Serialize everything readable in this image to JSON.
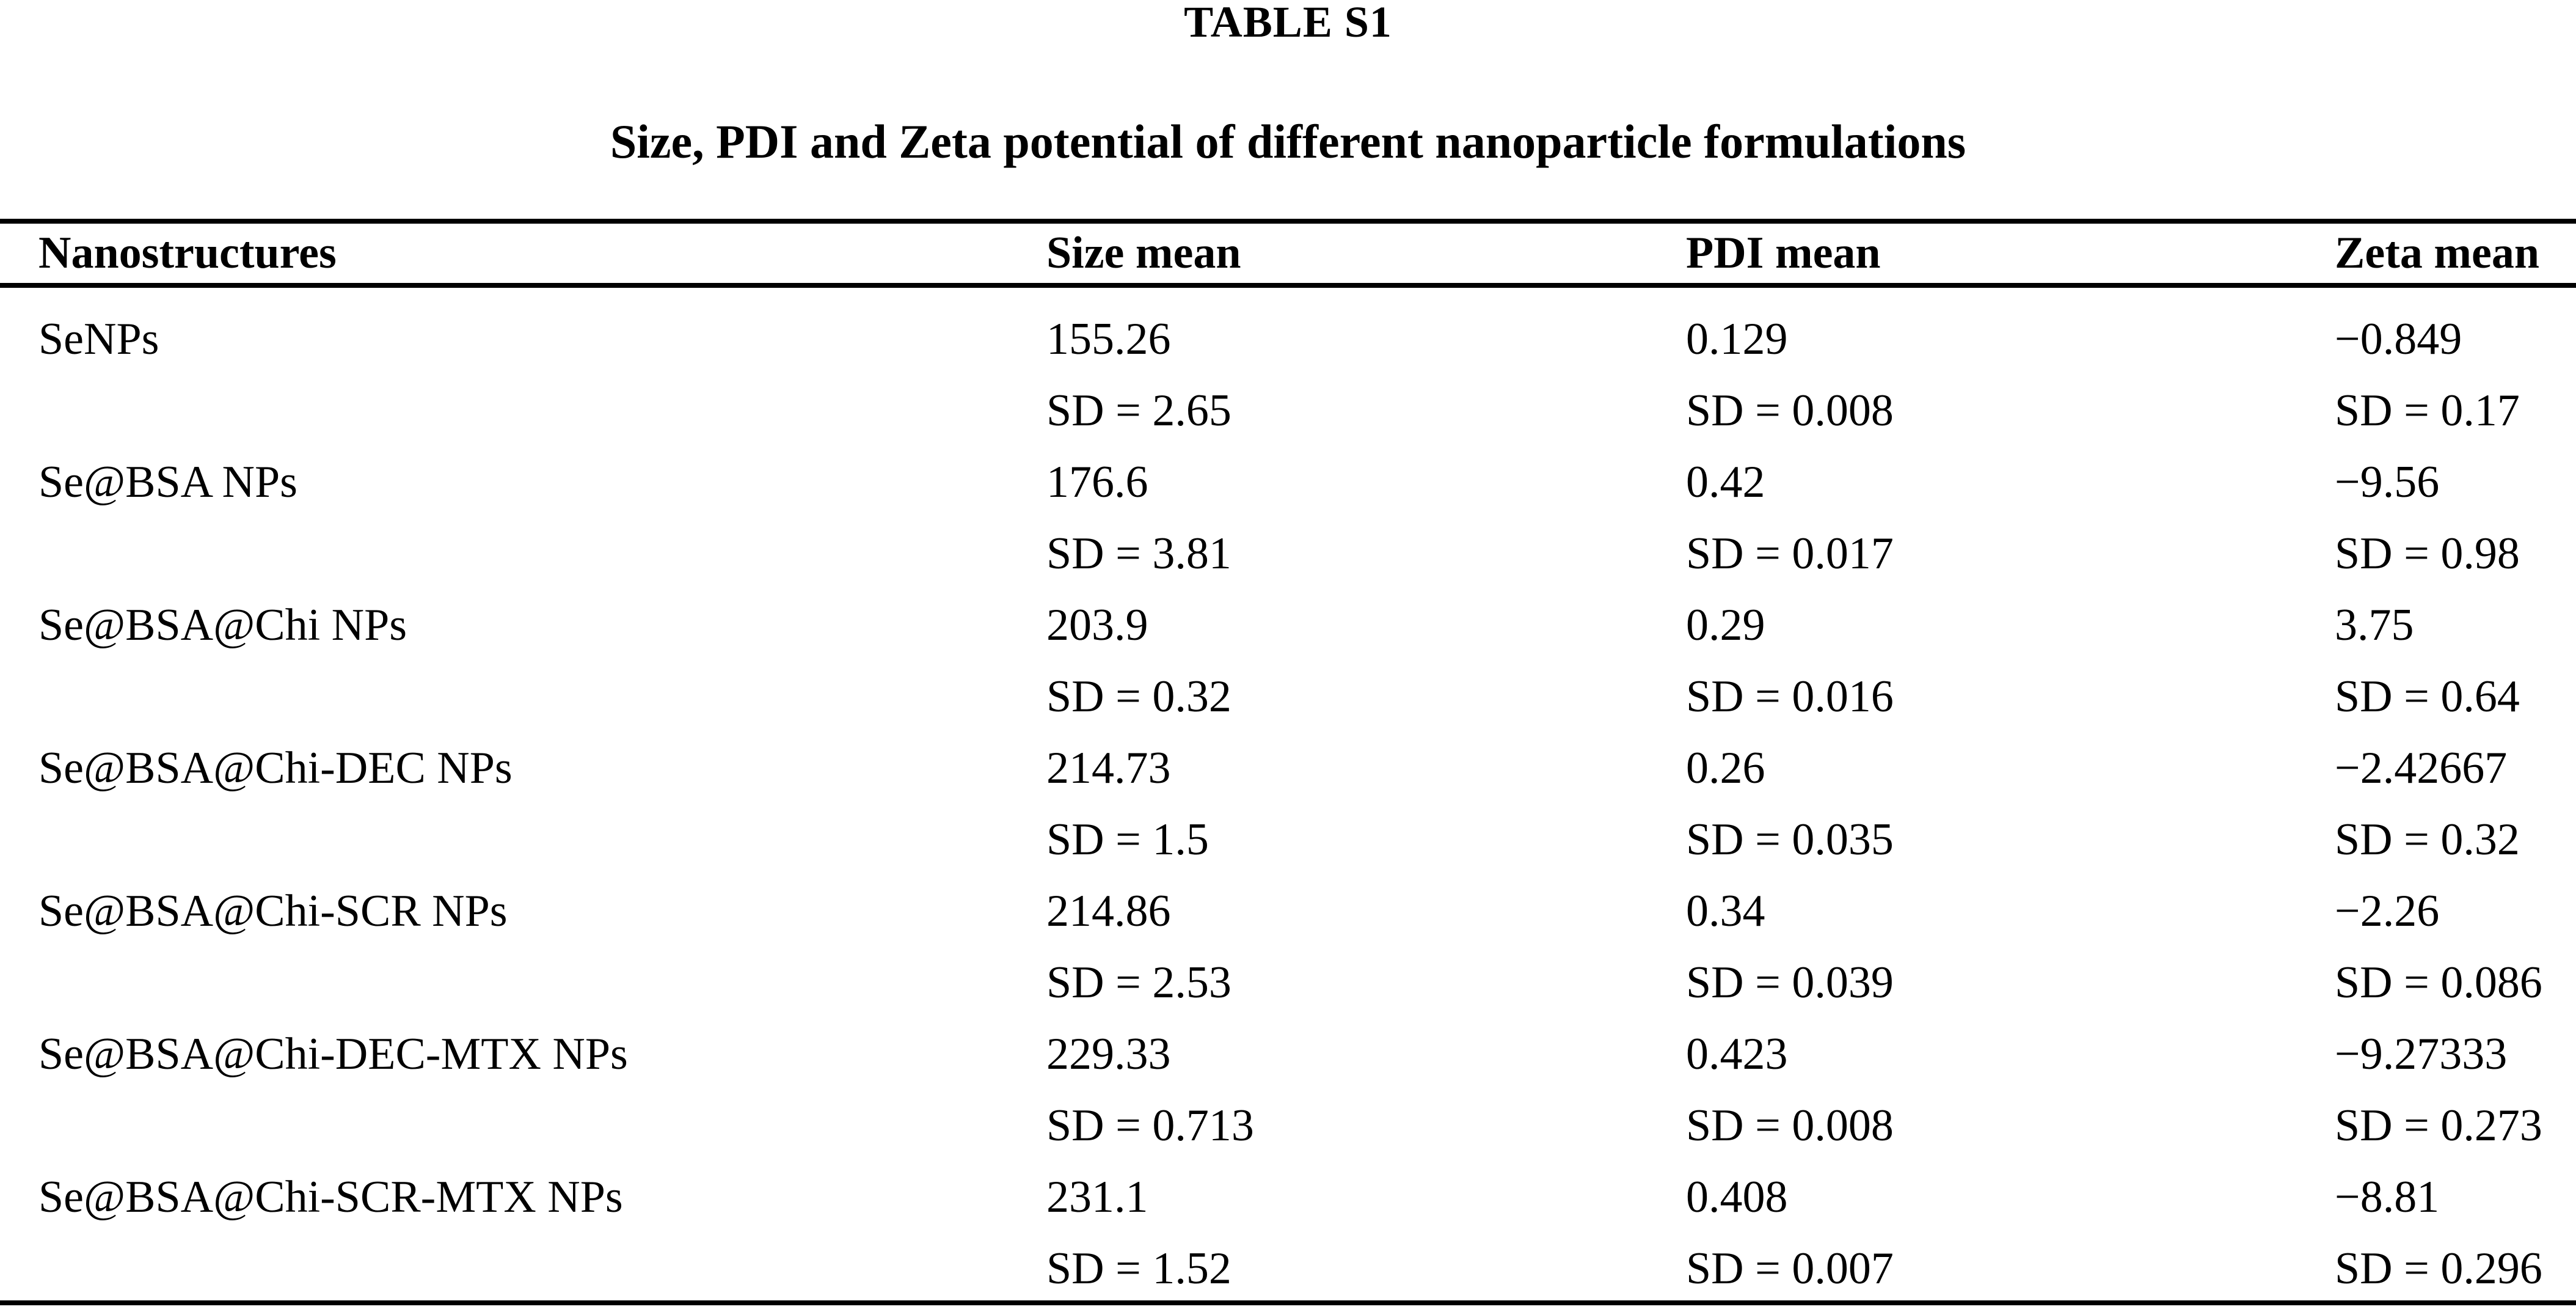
{
  "colors": {
    "background": "#ffffff",
    "text": "#000000",
    "rule": "#000000"
  },
  "document": {
    "label": "TABLE S1",
    "caption": "Size, PDI and Zeta potential of different nanoparticle formulations"
  },
  "table": {
    "columns": [
      "Nanostructures",
      "Size mean",
      "PDI mean",
      "Zeta mean"
    ],
    "rows": [
      {
        "name": "SeNPs",
        "size_mean": "155.26",
        "size_sd": "SD = 2.65",
        "pdi_mean": "0.129",
        "pdi_sd": "SD = 0.008",
        "zeta_mean": "−0.849",
        "zeta_sd": "SD = 0.17"
      },
      {
        "name": "Se@BSA NPs",
        "size_mean": "176.6",
        "size_sd": "SD = 3.81",
        "pdi_mean": "0.42",
        "pdi_sd": "SD = 0.017",
        "zeta_mean": "−9.56",
        "zeta_sd": "SD = 0.98"
      },
      {
        "name": "Se@BSA@Chi NPs",
        "size_mean": "203.9",
        "size_sd": "SD = 0.32",
        "pdi_mean": "0.29",
        "pdi_sd": "SD = 0.016",
        "zeta_mean": "3.75",
        "zeta_sd": "SD = 0.64"
      },
      {
        "name": "Se@BSA@Chi-DEC NPs",
        "size_mean": "214.73",
        "size_sd": "SD = 1.5",
        "pdi_mean": "0.26",
        "pdi_sd": "SD = 0.035",
        "zeta_mean": "−2.42667",
        "zeta_sd": "SD = 0.32"
      },
      {
        "name": "Se@BSA@Chi-SCR NPs",
        "size_mean": "214.86",
        "size_sd": "SD = 2.53",
        "pdi_mean": "0.34",
        "pdi_sd": "SD = 0.039",
        "zeta_mean": "−2.26",
        "zeta_sd": "SD = 0.086"
      },
      {
        "name": "Se@BSA@Chi-DEC-MTX NPs",
        "size_mean": "229.33",
        "size_sd": "SD = 0.713",
        "pdi_mean": "0.423",
        "pdi_sd": "SD = 0.008",
        "zeta_mean": "−9.27333",
        "zeta_sd": "SD = 0.273"
      },
      {
        "name": "Se@BSA@Chi-SCR-MTX NPs",
        "size_mean": "231.1",
        "size_sd": "SD = 1.52",
        "pdi_mean": "0.408",
        "pdi_sd": "SD = 0.007",
        "zeta_mean": "−8.81",
        "zeta_sd": "SD = 0.296"
      }
    ]
  }
}
